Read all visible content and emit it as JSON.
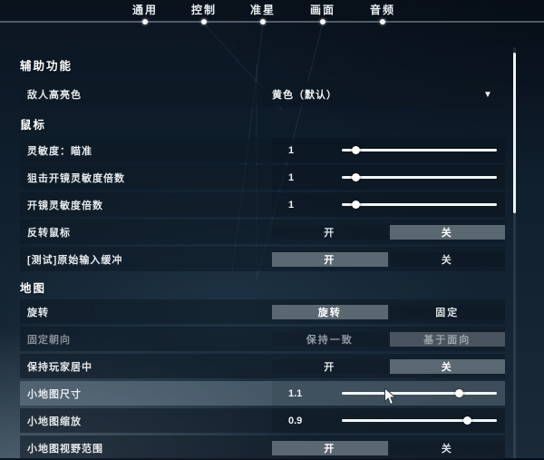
{
  "ui": {
    "tabs": [
      {
        "label": "通用"
      },
      {
        "label": "控制"
      },
      {
        "label": "准星"
      },
      {
        "label": "画面"
      },
      {
        "label": "音频"
      }
    ],
    "active_tab": "通用",
    "icons": {
      "dropdown_chevron": "▼",
      "tab_indicator": "dot",
      "cursor": "pointer-arrow"
    },
    "colors": {
      "selected_button_bg": "#5a6872",
      "disabled_selected_button_bg": "#49545e",
      "slider_track": "#f2f5f6",
      "scrollbar_thumb": "#f0f2f3",
      "row_bg": "rgba(14,26,36,0.58)",
      "hover_row_bg": "rgba(128,148,162,0.42)"
    },
    "sections": {
      "accessibility": {
        "title": "辅助功能",
        "rows": [
          {
            "type": "dropdown",
            "label": "敌人高亮色",
            "value": "黄色（默认）"
          }
        ]
      },
      "mouse": {
        "title": "鼠标",
        "rows": [
          {
            "type": "slider",
            "label": "灵敏度：瞄准",
            "value": "1",
            "thumb_pct": 9
          },
          {
            "type": "slider",
            "label": "狙击开镜灵敏度倍数",
            "value": "1",
            "thumb_pct": 9
          },
          {
            "type": "slider",
            "label": "开镜灵敏度倍数",
            "value": "1",
            "thumb_pct": 9
          },
          {
            "type": "toggle",
            "label": "反转鼠标",
            "options": [
              "开",
              "关"
            ],
            "selected_index": 1
          },
          {
            "type": "toggle",
            "label": "[测试]原始输入缓冲",
            "options": [
              "开",
              "关"
            ],
            "selected_index": 0
          }
        ]
      },
      "map": {
        "title": "地图",
        "rows": [
          {
            "type": "toggle",
            "label": "旋转",
            "options": [
              "旋转",
              "固定"
            ],
            "selected_index": 0
          },
          {
            "type": "toggle",
            "label": "固定朝向",
            "options": [
              "保持一致",
              "基于面向"
            ],
            "selected_index": 1,
            "disabled": true
          },
          {
            "type": "toggle",
            "label": "保持玩家居中",
            "options": [
              "开",
              "关"
            ],
            "selected_index": 1
          },
          {
            "type": "slider",
            "label": "小地图尺寸",
            "value": "1.1",
            "thumb_pct": 76,
            "hovered": true
          },
          {
            "type": "slider",
            "label": "小地图缩放",
            "value": "0.9",
            "thumb_pct": 81
          },
          {
            "type": "toggle",
            "label": "小地图视野范围",
            "options": [
              "开",
              "关"
            ],
            "selected_index": 0
          }
        ]
      }
    }
  }
}
